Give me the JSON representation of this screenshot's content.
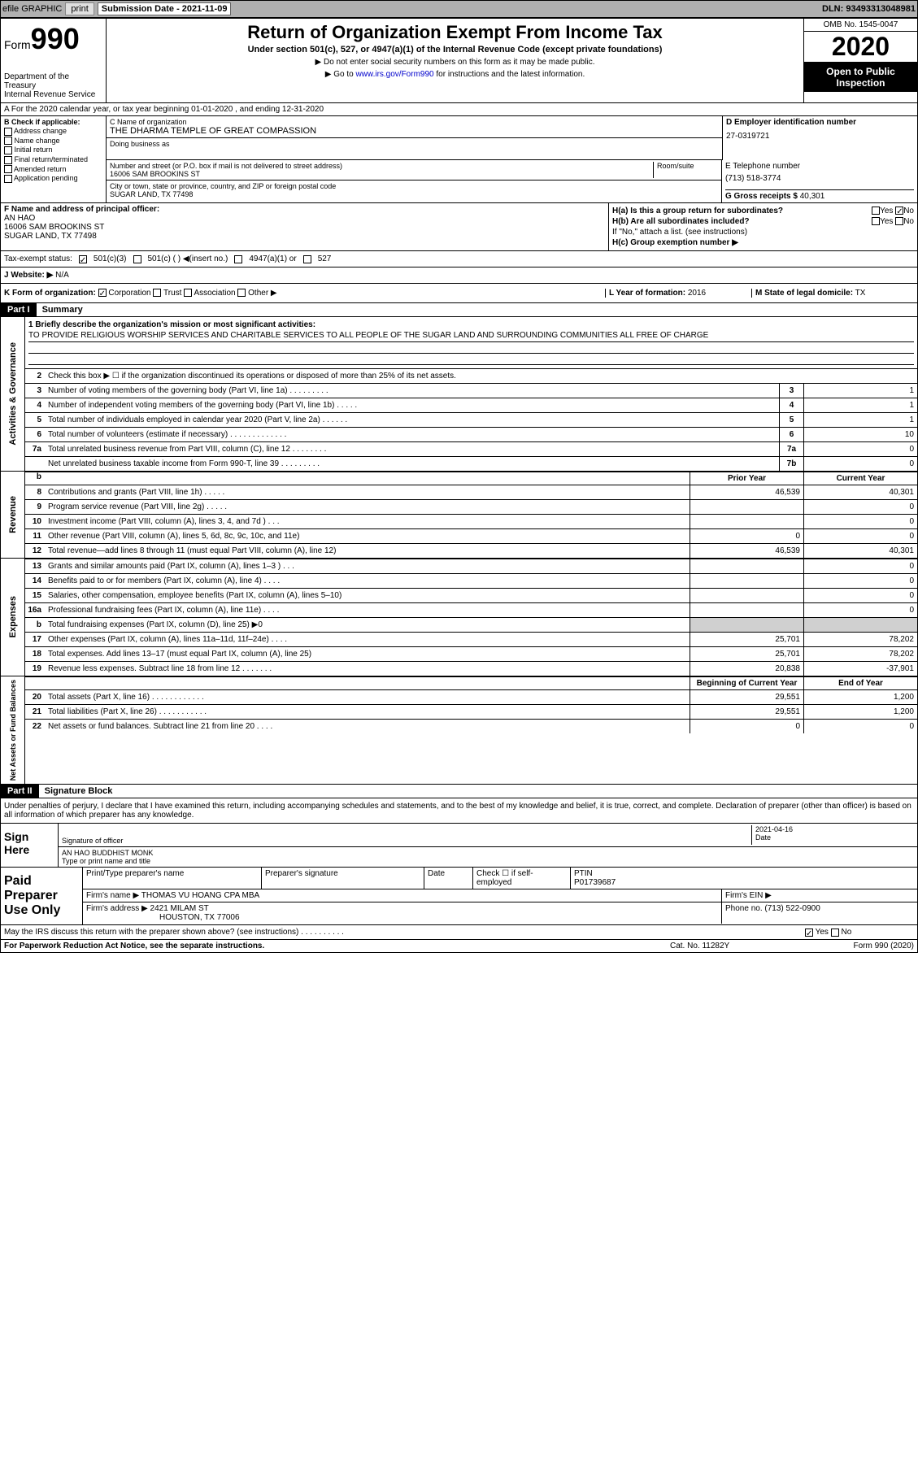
{
  "toolbar": {
    "efile": "efile GRAPHIC",
    "print": "print",
    "sub_label": "Submission Date",
    "sub_date": "2021-11-09",
    "dln": "DLN: 93493313048981"
  },
  "header": {
    "form_label": "Form",
    "form_num": "990",
    "title": "Return of Organization Exempt From Income Tax",
    "subtitle": "Under section 501(c), 527, or 4947(a)(1) of the Internal Revenue Code (except private foundations)",
    "note1": "▶ Do not enter social security numbers on this form as it may be made public.",
    "note2_pre": "▶ Go to ",
    "note2_link": "www.irs.gov/Form990",
    "note2_post": " for instructions and the latest information.",
    "dept": "Department of the Treasury\nInternal Revenue Service",
    "omb": "OMB No. 1545-0047",
    "year": "2020",
    "inspection": "Open to Public Inspection"
  },
  "row_a": "A For the 2020 calendar year, or tax year beginning 01-01-2020    , and ending 12-31-2020",
  "col_b": {
    "title": "B Check if applicable:",
    "opts": [
      "Address change",
      "Name change",
      "Initial return",
      "Final return/terminated",
      "Amended return",
      "Application pending"
    ]
  },
  "org": {
    "name_lbl": "C Name of organization",
    "name": "THE DHARMA TEMPLE OF GREAT COMPASSION",
    "dba_lbl": "Doing business as",
    "addr_lbl": "Number and street (or P.O. box if mail is not delivered to street address)",
    "room_lbl": "Room/suite",
    "addr": "16006 SAM BROOKINS ST",
    "city_lbl": "City or town, state or province, country, and ZIP or foreign postal code",
    "city": "SUGAR LAND, TX  77498"
  },
  "right_col": {
    "ein_lbl": "D Employer identification number",
    "ein": "27-0319721",
    "tel_lbl": "E Telephone number",
    "tel": "(713) 518-3774",
    "gross_lbl": "G Gross receipts $",
    "gross": "40,301"
  },
  "officer": {
    "lbl": "F  Name and address of principal officer:",
    "name": "AN HAO",
    "addr1": "16006 SAM BROOKINS ST",
    "addr2": "SUGAR LAND, TX  77498"
  },
  "h_section": {
    "ha": "H(a)  Is this a group return for subordinates?",
    "hb": "H(b)  Are all subordinates included?",
    "hb_note": "If \"No,\" attach a list. (see instructions)",
    "hc": "H(c)  Group exemption number ▶",
    "yes": "Yes",
    "no": "No"
  },
  "status": {
    "lbl": "Tax-exempt status:",
    "o1": "501(c)(3)",
    "o2": "501(c) (  ) ◀(insert no.)",
    "o3": "4947(a)(1) or",
    "o4": "527"
  },
  "website": {
    "lbl": "J   Website: ▶",
    "val": "N/A"
  },
  "k_row": {
    "lbl": "K Form of organization:",
    "opts": [
      "Corporation",
      "Trust",
      "Association",
      "Other ▶"
    ],
    "l_lbl": "L Year of formation:",
    "l_val": "2016",
    "m_lbl": "M State of legal domicile:",
    "m_val": "TX"
  },
  "parts": {
    "p1": "Part I",
    "p1_title": "Summary",
    "p2": "Part II",
    "p2_title": "Signature Block"
  },
  "vlabels": {
    "ag": "Activities & Governance",
    "rev": "Revenue",
    "exp": "Expenses",
    "na": "Net Assets or Fund Balances"
  },
  "mission": {
    "lbl": "1  Briefly describe the organization's mission or most significant activities:",
    "text": "TO PROVIDE RELIGIOUS WORSHIP SERVICES AND CHARITABLE SERVICES TO ALL PEOPLE OF THE SUGAR LAND AND SURROUNDING COMMUNITIES ALL FREE OF CHARGE"
  },
  "line2": "Check this box ▶ ☐  if the organization discontinued its operations or disposed of more than 25% of its net assets.",
  "lines_ag": [
    {
      "n": "3",
      "t": "Number of voting members of the governing body (Part VI, line 1a)  .  .  .  .  .  .  .  .  .",
      "b": "3",
      "v": "1"
    },
    {
      "n": "4",
      "t": "Number of independent voting members of the governing body (Part VI, line 1b)  .  .  .  .  .",
      "b": "4",
      "v": "1"
    },
    {
      "n": "5",
      "t": "Total number of individuals employed in calendar year 2020 (Part V, line 2a)  .  .  .  .  .  .",
      "b": "5",
      "v": "1"
    },
    {
      "n": "6",
      "t": "Total number of volunteers (estimate if necessary)   .  .  .  .  .  .  .  .  .  .  .  .  .",
      "b": "6",
      "v": "10"
    },
    {
      "n": "7a",
      "t": "Total unrelated business revenue from Part VIII, column (C), line 12  .  .  .  .  .  .  .  .",
      "b": "7a",
      "v": "0"
    },
    {
      "n": "",
      "t": "Net unrelated business taxable income from Form 990-T, line 39   .  .  .  .  .  .  .  .  .",
      "b": "7b",
      "v": "0"
    }
  ],
  "col_headers": {
    "prior": "Prior Year",
    "current": "Current Year",
    "begin": "Beginning of Current Year",
    "end": "End of Year"
  },
  "lines_rev": [
    {
      "n": "8",
      "t": "Contributions and grants (Part VIII, line 1h)   .  .  .  .  .",
      "p": "46,539",
      "c": "40,301"
    },
    {
      "n": "9",
      "t": "Program service revenue (Part VIII, line 2g)  .  .  .  .  .",
      "p": "",
      "c": "0"
    },
    {
      "n": "10",
      "t": "Investment income (Part VIII, column (A), lines 3, 4, and 7d )   .  .  .",
      "p": "",
      "c": "0"
    },
    {
      "n": "11",
      "t": "Other revenue (Part VIII, column (A), lines 5, 6d, 8c, 9c, 10c, and 11e)",
      "p": "0",
      "c": "0"
    },
    {
      "n": "12",
      "t": "Total revenue—add lines 8 through 11 (must equal Part VIII, column (A), line 12)",
      "p": "46,539",
      "c": "40,301"
    }
  ],
  "lines_exp": [
    {
      "n": "13",
      "t": "Grants and similar amounts paid (Part IX, column (A), lines 1–3 )  .  .  .",
      "p": "",
      "c": "0"
    },
    {
      "n": "14",
      "t": "Benefits paid to or for members (Part IX, column (A), line 4)  .  .  .  .",
      "p": "",
      "c": "0"
    },
    {
      "n": "15",
      "t": "Salaries, other compensation, employee benefits (Part IX, column (A), lines 5–10)",
      "p": "",
      "c": "0"
    },
    {
      "n": "16a",
      "t": "Professional fundraising fees (Part IX, column (A), line 11e)  .  .  .  .",
      "p": "",
      "c": "0"
    },
    {
      "n": "b",
      "t": "Total fundraising expenses (Part IX, column (D), line 25) ▶0",
      "p": "",
      "c": "",
      "shaded": true
    },
    {
      "n": "17",
      "t": "Other expenses (Part IX, column (A), lines 11a–11d, 11f–24e)  .  .  .  .",
      "p": "25,701",
      "c": "78,202"
    },
    {
      "n": "18",
      "t": "Total expenses. Add lines 13–17 (must equal Part IX, column (A), line 25)",
      "p": "25,701",
      "c": "78,202"
    },
    {
      "n": "19",
      "t": "Revenue less expenses. Subtract line 18 from line 12  .  .  .  .  .  .  .",
      "p": "20,838",
      "c": "-37,901"
    }
  ],
  "lines_na": [
    {
      "n": "20",
      "t": "Total assets (Part X, line 16)  .  .  .  .  .  .  .  .  .  .  .  .",
      "p": "29,551",
      "c": "1,200"
    },
    {
      "n": "21",
      "t": "Total liabilities (Part X, line 26)  .  .  .  .  .  .  .  .  .  .  .",
      "p": "29,551",
      "c": "1,200"
    },
    {
      "n": "22",
      "t": "Net assets or fund balances. Subtract line 21 from line 20  .  .  .  .",
      "p": "0",
      "c": "0"
    }
  ],
  "sig": {
    "perjury": "Under penalties of perjury, I declare that I have examined this return, including accompanying schedules and statements, and to the best of my knowledge and belief, it is true, correct, and complete. Declaration of preparer (other than officer) is based on all information of which preparer has any knowledge.",
    "sign_here": "Sign Here",
    "sig_officer": "Signature of officer",
    "date_lbl": "Date",
    "date": "2021-04-16",
    "name_title": "AN HAO  BUDDHIST MONK",
    "type_lbl": "Type or print name and title"
  },
  "prep": {
    "label": "Paid Preparer Use Only",
    "h1": "Print/Type preparer's name",
    "h2": "Preparer's signature",
    "h3": "Date",
    "h4": "Check ☐ if self-employed",
    "h5": "PTIN",
    "ptin": "P01739687",
    "firm_lbl": "Firm's name      ▶",
    "firm": "THOMAS VU HOANG CPA MBA",
    "ein_lbl": "Firm's EIN ▶",
    "addr_lbl": "Firm's address ▶",
    "addr1": "2421 MILAM ST",
    "addr2": "HOUSTON, TX  77006",
    "phone_lbl": "Phone no.",
    "phone": "(713) 522-0900"
  },
  "discuss": "May the IRS discuss this return with the preparer shown above? (see instructions)   .   .   .   .   .   .   .   .   .   .",
  "footer": {
    "left": "For Paperwork Reduction Act Notice, see the separate instructions.",
    "mid": "Cat. No. 11282Y",
    "right": "Form 990 (2020)"
  }
}
